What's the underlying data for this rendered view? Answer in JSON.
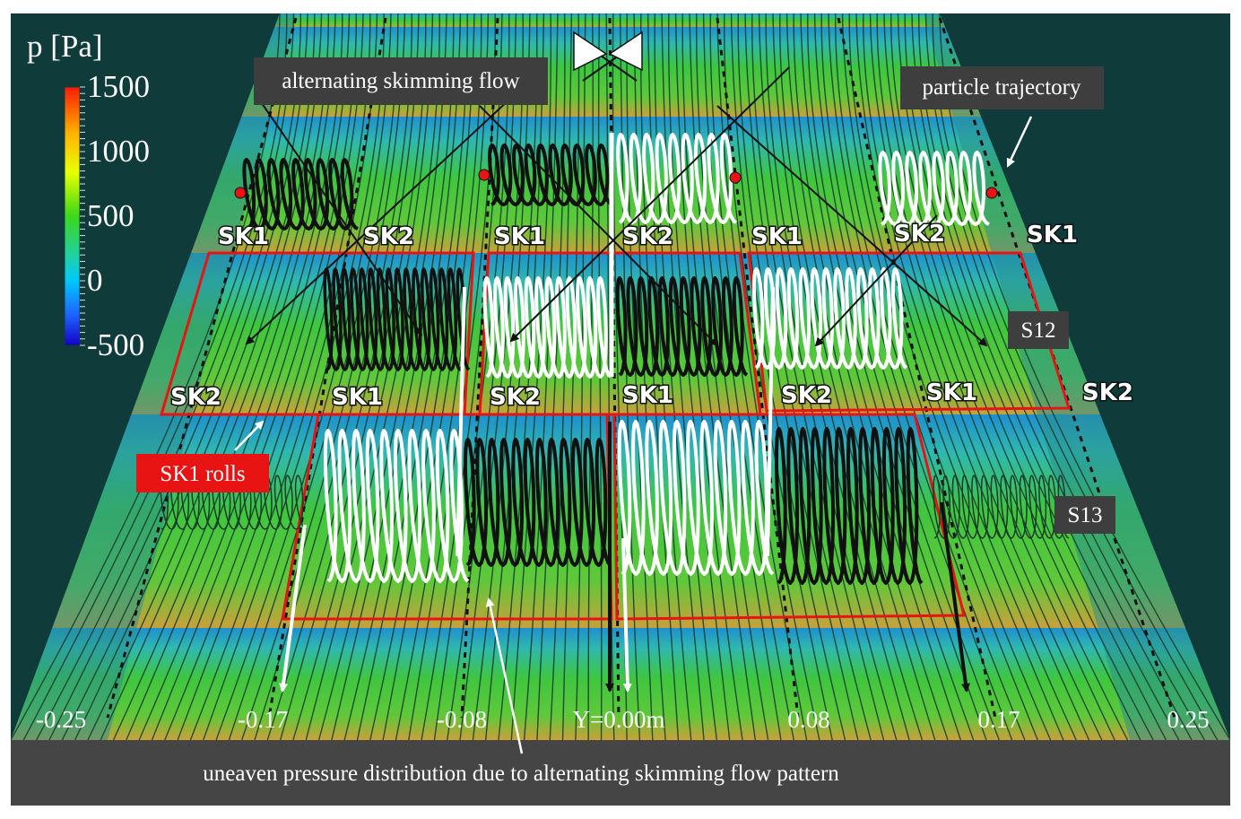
{
  "colorbar": {
    "title": "p [Pa]",
    "tick_labels": [
      "1500",
      "1000",
      "500",
      "0",
      "-500"
    ],
    "colors": [
      "#ff1a00",
      "#ffb300",
      "#e8ff00",
      "#3cd81a",
      "#1fd0a8",
      "#00c8ff",
      "#1e64ff",
      "#1400c8"
    ]
  },
  "callouts": {
    "alternating": "alternating skimming flow",
    "particle": "particle trajectory",
    "rolls": "SK1 rolls",
    "s12": "S12",
    "s13": "S13"
  },
  "step_labels": {
    "row1": [
      "SK1",
      "SK2",
      "SK1",
      "SK2",
      "SK1",
      "SK2",
      "SK1"
    ],
    "row2": [
      "SK2",
      "SK1",
      "SK2",
      "SK1",
      "SK2",
      "SK1",
      "SK2"
    ]
  },
  "axis": {
    "ticks": [
      "-0.25",
      "-0.17",
      "-0.08",
      "Y=0.00m",
      "0.08",
      "0.17",
      "0.25"
    ]
  },
  "caption": "uneaven pressure distribution due to alternating skimming flow pattern",
  "palette": {
    "background": "#0f3b3b",
    "caption_bar": "#454545",
    "label_box": "#3e3e3e",
    "roll_box": "#e81414",
    "outline": "#e81414",
    "flow_green": "#3fc63f",
    "riser_blue": "#1f8fd0",
    "step_orange": "#c9a03a"
  }
}
